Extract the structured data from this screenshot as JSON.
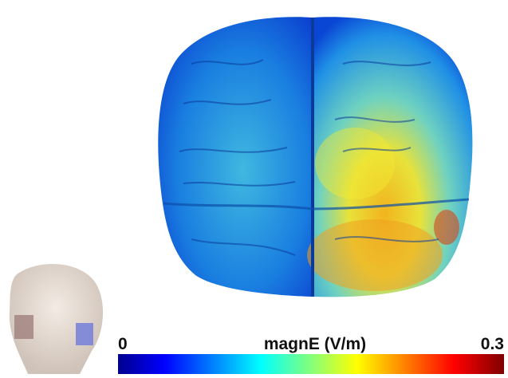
{
  "colorbar": {
    "label": "magnE (V/m)",
    "min": 0,
    "max": 0.3
  }
}
